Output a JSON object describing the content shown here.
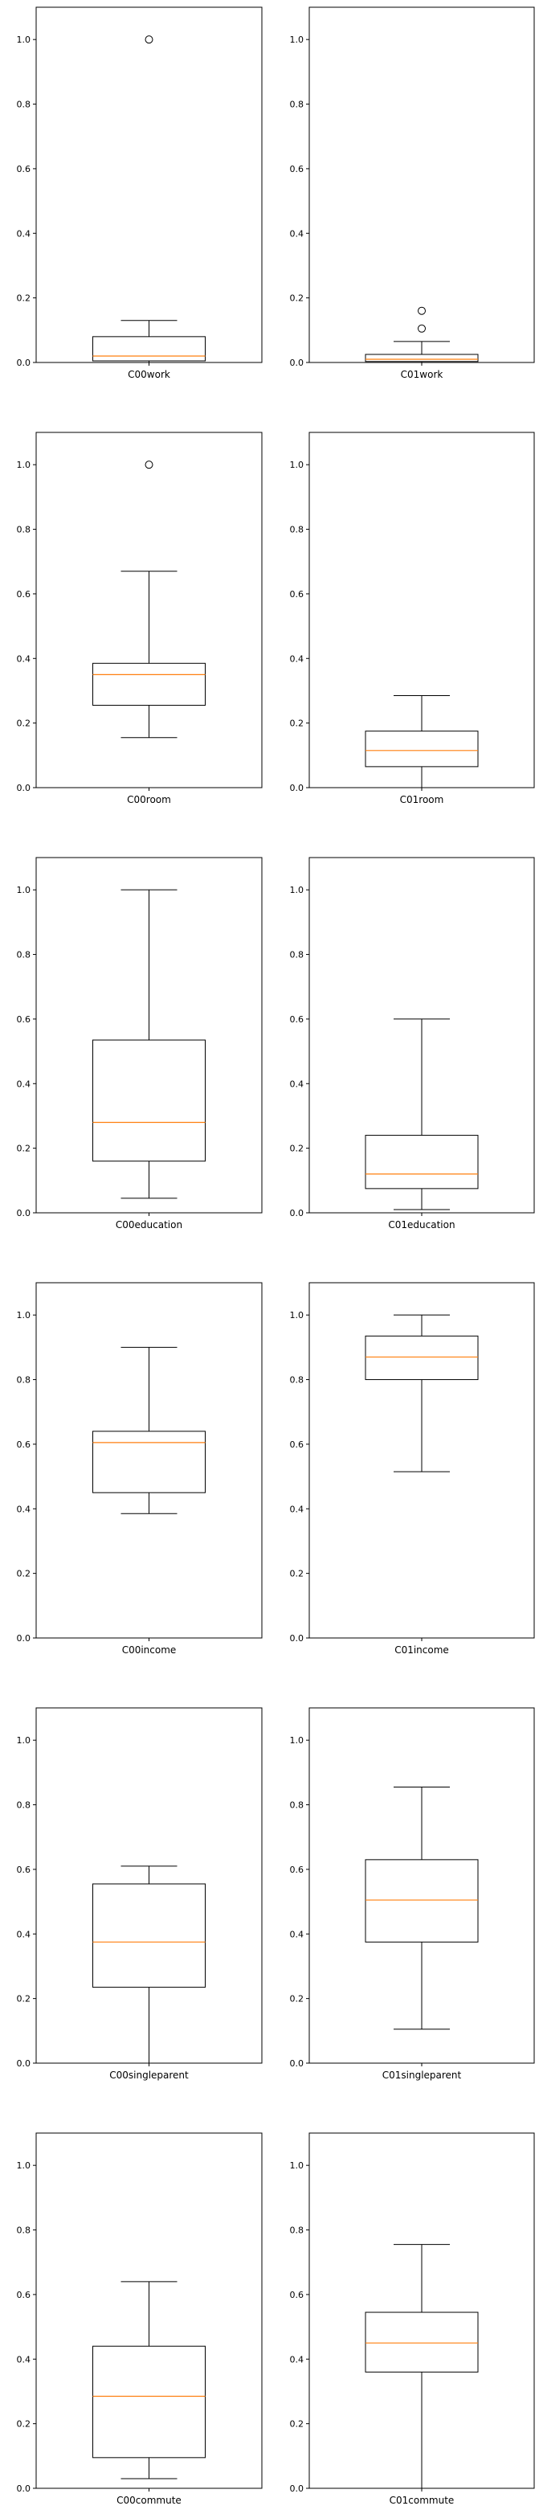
{
  "style": {
    "box_color": "#000000",
    "median_color": "#ff7f0e",
    "background": "#ffffff"
  },
  "chart_data": [
    {
      "type": "box",
      "category": "C00work",
      "ylim": [
        0,
        1.1
      ],
      "yticks": [
        "0.0",
        "0.2",
        "0.4",
        "0.6",
        "0.8",
        "1.0"
      ],
      "whisker_low": 0.0,
      "q1": 0.005,
      "median": 0.02,
      "q3": 0.08,
      "whisker_high": 0.13,
      "outliers": [
        1.0
      ]
    },
    {
      "type": "box",
      "category": "C01work",
      "ylim": [
        0,
        1.1
      ],
      "yticks": [
        "0.0",
        "0.2",
        "0.4",
        "0.6",
        "0.8",
        "1.0"
      ],
      "whisker_low": 0.0,
      "q1": 0.003,
      "median": 0.01,
      "q3": 0.025,
      "whisker_high": 0.065,
      "outliers": [
        0.105,
        0.16
      ]
    },
    {
      "type": "box",
      "category": "C00room",
      "ylim": [
        0,
        1.1
      ],
      "yticks": [
        "0.0",
        "0.2",
        "0.4",
        "0.6",
        "0.8",
        "1.0"
      ],
      "whisker_low": 0.155,
      "q1": 0.255,
      "median": 0.35,
      "q3": 0.385,
      "whisker_high": 0.67,
      "outliers": [
        1.0
      ]
    },
    {
      "type": "box",
      "category": "C01room",
      "ylim": [
        0,
        1.1
      ],
      "yticks": [
        "0.0",
        "0.2",
        "0.4",
        "0.6",
        "0.8",
        "1.0"
      ],
      "whisker_low": 0.0,
      "q1": 0.065,
      "median": 0.115,
      "q3": 0.175,
      "whisker_high": 0.285,
      "outliers": []
    },
    {
      "type": "box",
      "category": "C00education",
      "ylim": [
        0,
        1.1
      ],
      "yticks": [
        "0.0",
        "0.2",
        "0.4",
        "0.6",
        "0.8",
        "1.0"
      ],
      "whisker_low": 0.045,
      "q1": 0.16,
      "median": 0.28,
      "q3": 0.535,
      "whisker_high": 1.0,
      "outliers": []
    },
    {
      "type": "box",
      "category": "C01education",
      "ylim": [
        0,
        1.1
      ],
      "yticks": [
        "0.0",
        "0.2",
        "0.4",
        "0.6",
        "0.8",
        "1.0"
      ],
      "whisker_low": 0.01,
      "q1": 0.075,
      "median": 0.12,
      "q3": 0.24,
      "whisker_high": 0.6,
      "outliers": []
    },
    {
      "type": "box",
      "category": "C00income",
      "ylim": [
        0,
        1.1
      ],
      "yticks": [
        "0.0",
        "0.2",
        "0.4",
        "0.6",
        "0.8",
        "1.0"
      ],
      "whisker_low": 0.385,
      "q1": 0.45,
      "median": 0.605,
      "q3": 0.64,
      "whisker_high": 0.9,
      "outliers": []
    },
    {
      "type": "box",
      "category": "C01income",
      "ylim": [
        0,
        1.1
      ],
      "yticks": [
        "0.0",
        "0.2",
        "0.4",
        "0.6",
        "0.8",
        "1.0"
      ],
      "whisker_low": 0.515,
      "q1": 0.8,
      "median": 0.87,
      "q3": 0.935,
      "whisker_high": 1.0,
      "outliers": []
    },
    {
      "type": "box",
      "category": "C00singleparent",
      "ylim": [
        0,
        1.1
      ],
      "yticks": [
        "0.0",
        "0.2",
        "0.4",
        "0.6",
        "0.8",
        "1.0"
      ],
      "whisker_low": 0.0,
      "q1": 0.235,
      "median": 0.375,
      "q3": 0.555,
      "whisker_high": 0.61,
      "outliers": []
    },
    {
      "type": "box",
      "category": "C01singleparent",
      "ylim": [
        0,
        1.1
      ],
      "yticks": [
        "0.0",
        "0.2",
        "0.4",
        "0.6",
        "0.8",
        "1.0"
      ],
      "whisker_low": 0.105,
      "q1": 0.375,
      "median": 0.505,
      "q3": 0.63,
      "whisker_high": 0.855,
      "outliers": []
    },
    {
      "type": "box",
      "category": "C00commute",
      "ylim": [
        0,
        1.1
      ],
      "yticks": [
        "0.0",
        "0.2",
        "0.4",
        "0.6",
        "0.8",
        "1.0"
      ],
      "whisker_low": 0.03,
      "q1": 0.095,
      "median": 0.285,
      "q3": 0.44,
      "whisker_high": 0.64,
      "outliers": []
    },
    {
      "type": "box",
      "category": "C01commute",
      "ylim": [
        0,
        1.1
      ],
      "yticks": [
        "0.0",
        "0.2",
        "0.4",
        "0.6",
        "0.8",
        "1.0"
      ],
      "whisker_low": 0.0,
      "q1": 0.36,
      "median": 0.45,
      "q3": 0.545,
      "whisker_high": 0.755,
      "outliers": []
    }
  ]
}
